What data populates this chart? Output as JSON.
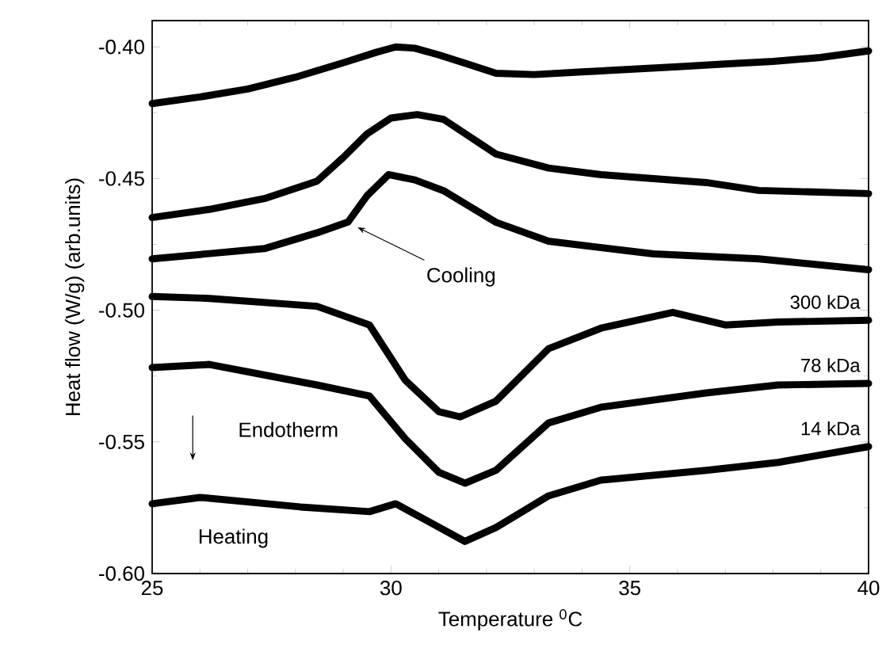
{
  "chart_data": {
    "type": "line",
    "xlabel": "Temperature $^{0}$C",
    "ylabel": "Heat flow (W/g) (arb.units)",
    "xlim": [
      25,
      40
    ],
    "ylim": [
      -0.6,
      -0.39
    ],
    "xticks": [
      25,
      30,
      35,
      40
    ],
    "yticks": [
      {
        "value": -0.6,
        "label": "-0.60"
      },
      -0.55,
      {
        "value": -0.5,
        "label": "-0.50"
      },
      -0.45,
      {
        "value": -0.4,
        "label": "-0.40"
      }
    ],
    "series": [
      {
        "color": "#000000",
        "x": [
          25,
          26,
          27,
          28,
          29,
          29.7,
          30.1,
          30.5,
          31,
          31.6,
          32.2,
          33,
          34,
          35,
          36,
          37,
          38,
          39,
          40
        ],
        "values": [
          -0.4215,
          -0.419,
          -0.416,
          -0.4115,
          -0.406,
          -0.402,
          -0.4,
          -0.4005,
          -0.403,
          -0.4065,
          -0.41,
          -0.4105,
          -0.4095,
          -0.4085,
          -0.4075,
          -0.4065,
          -0.4055,
          -0.404,
          -0.4015
        ]
      },
      {
        "color": "#000000",
        "x": [
          25,
          26.2,
          27.35,
          28.45,
          29,
          29.5,
          30,
          30.55,
          31.1,
          32.2,
          33.3,
          34.4,
          35.5,
          36.6,
          37.7,
          40
        ],
        "values": [
          -0.4648,
          -0.4617,
          -0.4576,
          -0.451,
          -0.442,
          -0.433,
          -0.427,
          -0.4257,
          -0.4275,
          -0.4407,
          -0.446,
          -0.4485,
          -0.45,
          -0.4515,
          -0.4545,
          -0.4557
        ]
      },
      {
        "color": "#000000",
        "x": [
          25,
          26.2,
          27.35,
          28.45,
          29.1,
          29.5,
          29.95,
          30.5,
          31.1,
          32.2,
          33.3,
          35.5,
          37.7,
          40
        ],
        "values": [
          -0.4805,
          -0.4785,
          -0.4766,
          -0.4706,
          -0.4665,
          -0.4565,
          -0.4485,
          -0.4505,
          -0.4546,
          -0.4666,
          -0.4738,
          -0.4786,
          -0.4805,
          -0.4846
        ]
      },
      {
        "name": "300 kDa",
        "color": "#000000",
        "x": [
          25,
          26.2,
          28.45,
          29.55,
          30.3,
          31.0,
          31.45,
          32.2,
          33.3,
          34.4,
          35.9,
          37,
          38.1,
          40
        ],
        "values": [
          -0.4948,
          -0.4955,
          -0.4985,
          -0.5056,
          -0.5266,
          -0.5385,
          -0.5405,
          -0.5345,
          -0.5146,
          -0.5068,
          -0.5008,
          -0.5056,
          -0.5045,
          -0.5038
        ]
      },
      {
        "name": "78 kDa",
        "color": "#000000",
        "x": [
          25,
          26.2,
          28.45,
          29.55,
          30.3,
          31.0,
          31.55,
          32.2,
          33.3,
          34.4,
          36.6,
          38.1,
          40
        ],
        "values": [
          -0.5218,
          -0.5206,
          -0.5284,
          -0.5326,
          -0.5488,
          -0.5615,
          -0.5657,
          -0.5608,
          -0.5428,
          -0.5368,
          -0.5314,
          -0.5284,
          -0.5278
        ]
      },
      {
        "name": "14 kDa",
        "color": "#000000",
        "x": [
          25,
          26,
          28.1,
          29.55,
          30.1,
          30.65,
          31.55,
          32.2,
          33.3,
          34.4,
          36.6,
          38.1,
          40
        ],
        "values": [
          -0.5735,
          -0.5711,
          -0.5747,
          -0.5765,
          -0.5735,
          -0.5789,
          -0.5878,
          -0.5825,
          -0.5705,
          -0.5645,
          -0.5608,
          -0.5578,
          -0.5518
        ]
      }
    ],
    "annotations": [
      {
        "text": "Cooling",
        "x": 29.3,
        "y": -0.4685
      },
      "Endotherm",
      "Heating"
    ]
  }
}
